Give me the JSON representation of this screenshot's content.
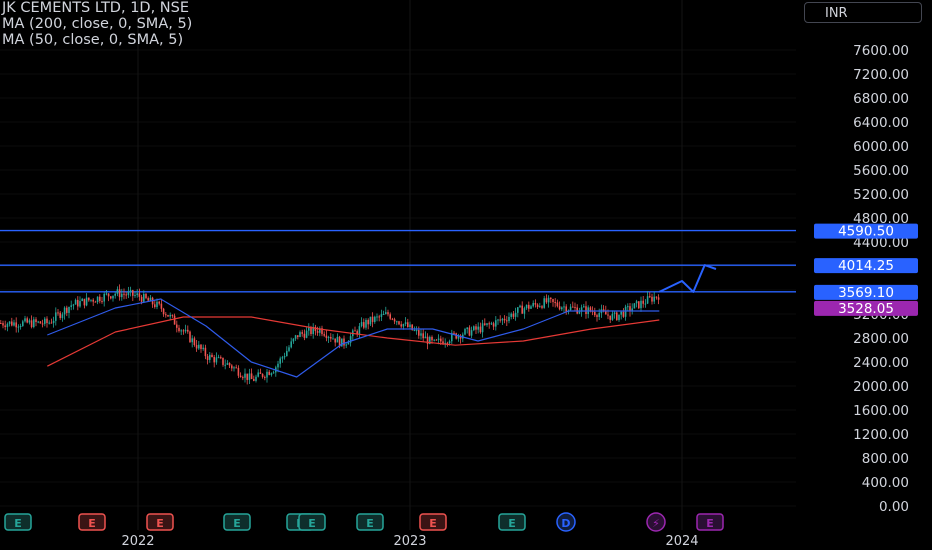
{
  "legend": {
    "symbol": "JK CEMENTS LTD, 1D, NSE",
    "ma1": "MA (200, close, 0, SMA, 5)",
    "ma2": "MA (50, close, 0, SMA, 5)"
  },
  "currency": "INR",
  "colors": {
    "background": "#000000",
    "up": "#26a69a",
    "down": "#ef5350",
    "ma200": "#e53935",
    "ma50": "#2f5bea",
    "hline": "#2962ff",
    "axis_text": "#d1d4dc"
  },
  "chart_data": {
    "type": "candlestick",
    "title": "JK CEMENTS LTD, 1D, NSE",
    "y_ticks": [
      0,
      400,
      800,
      1200,
      1600,
      2000,
      2400,
      2800,
      3200,
      3600,
      4000,
      4400,
      4800,
      5200,
      5600,
      6000,
      6400,
      6800,
      7200,
      7600
    ],
    "y_tick_labels": [
      "0.00",
      "400.00",
      "800.00",
      "1200.00",
      "1600.00",
      "2000.00",
      "2400.00",
      "2800.00",
      "3200.00",
      "3600.00",
      "4000.00",
      "4400.00",
      "4800.00",
      "5200.00",
      "5600.00",
      "6000.00",
      "6400.00",
      "6800.00",
      "7200.00",
      "7600.00"
    ],
    "ylim": [
      0,
      7900
    ],
    "x_labels": [
      "2022",
      "2023",
      "2024"
    ],
    "price_labels": [
      {
        "value": 4590.5,
        "text": "4590.50",
        "color": "#2962ff"
      },
      {
        "value": 4014.25,
        "text": "4014.25",
        "color": "#2962ff"
      },
      {
        "value": 3569.1,
        "text": "3569.10",
        "color": "#2962ff"
      },
      {
        "value": 3528.05,
        "text": "3528.05",
        "color": "#9c27b0"
      }
    ],
    "horizontal_lines": [
      4590.5,
      4014.25,
      3569.1
    ],
    "price_series": [
      {
        "date": "2021-09",
        "value": 3050
      },
      {
        "date": "2021-10",
        "value": 3350
      },
      {
        "date": "2021-11",
        "value": 3450
      },
      {
        "date": "2021-12",
        "value": 3550
      },
      {
        "date": "2022-01",
        "value": 3500
      },
      {
        "date": "2022-02",
        "value": 3300
      },
      {
        "date": "2022-03",
        "value": 2900
      },
      {
        "date": "2022-04",
        "value": 2500
      },
      {
        "date": "2022-05",
        "value": 2350
      },
      {
        "date": "2022-06",
        "value": 2100
      },
      {
        "date": "2022-07",
        "value": 2300
      },
      {
        "date": "2022-08",
        "value": 2850
      },
      {
        "date": "2022-09",
        "value": 2950
      },
      {
        "date": "2022-10",
        "value": 2700
      },
      {
        "date": "2022-11",
        "value": 3050
      },
      {
        "date": "2022-12",
        "value": 3200
      },
      {
        "date": "2023-01",
        "value": 2950
      },
      {
        "date": "2023-02",
        "value": 2700
      },
      {
        "date": "2023-03",
        "value": 2850
      },
      {
        "date": "2023-04",
        "value": 2950
      },
      {
        "date": "2023-05",
        "value": 3100
      },
      {
        "date": "2023-06",
        "value": 3300
      },
      {
        "date": "2023-07",
        "value": 3400
      },
      {
        "date": "2023-08",
        "value": 3300
      },
      {
        "date": "2023-09",
        "value": 3250
      },
      {
        "date": "2023-10",
        "value": 3150
      },
      {
        "date": "2023-11",
        "value": 3350
      },
      {
        "date": "2023-12",
        "value": 3528.05
      }
    ],
    "ma50_series": [
      {
        "date": "2021-09",
        "value": 2850
      },
      {
        "date": "2021-12",
        "value": 3300
      },
      {
        "date": "2022-02",
        "value": 3450
      },
      {
        "date": "2022-04",
        "value": 3000
      },
      {
        "date": "2022-06",
        "value": 2400
      },
      {
        "date": "2022-08",
        "value": 2150
      },
      {
        "date": "2022-10",
        "value": 2700
      },
      {
        "date": "2022-12",
        "value": 2950
      },
      {
        "date": "2023-02",
        "value": 2950
      },
      {
        "date": "2023-04",
        "value": 2750
      },
      {
        "date": "2023-06",
        "value": 2950
      },
      {
        "date": "2023-08",
        "value": 3250
      },
      {
        "date": "2023-10",
        "value": 3250
      },
      {
        "date": "2023-12",
        "value": 3250
      }
    ],
    "ma200_series": [
      {
        "date": "2021-09",
        "value": 2330
      },
      {
        "date": "2021-12",
        "value": 2900
      },
      {
        "date": "2022-03",
        "value": 3150
      },
      {
        "date": "2022-06",
        "value": 3150
      },
      {
        "date": "2022-09",
        "value": 2950
      },
      {
        "date": "2022-12",
        "value": 2800
      },
      {
        "date": "2023-03",
        "value": 2680
      },
      {
        "date": "2023-06",
        "value": 2750
      },
      {
        "date": "2023-09",
        "value": 2950
      },
      {
        "date": "2023-12",
        "value": 3100
      }
    ],
    "projection": [
      {
        "date": "2023-12",
        "value": 3569.1
      },
      {
        "date": "2024-01",
        "value": 3750
      },
      {
        "date": "2024-01b",
        "value": 3569.1
      },
      {
        "date": "2024-02",
        "value": 4014.25
      },
      {
        "date": "2024-02b",
        "value": 3950
      }
    ],
    "event_markers": [
      "E",
      "E",
      "E",
      "E",
      "E",
      "E",
      "E",
      "E",
      "E",
      "D",
      "⚡",
      "E"
    ]
  }
}
